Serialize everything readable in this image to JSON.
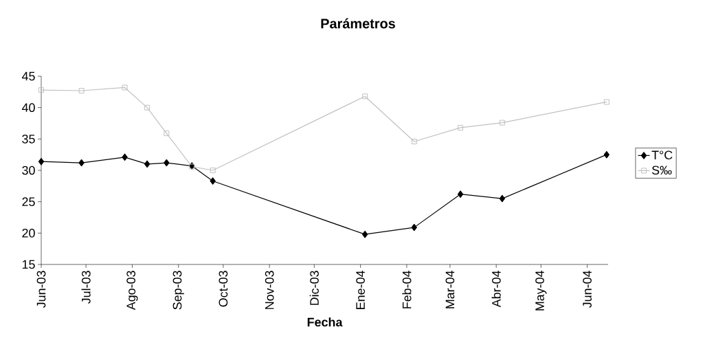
{
  "chart_data": {
    "type": "line",
    "title": "Parámetros",
    "xlabel": "Fecha",
    "x": [
      "2003-06-01",
      "2003-06-28",
      "2003-07-27",
      "2003-08-11",
      "2003-08-24",
      "2003-09-10",
      "2003-09-24",
      "2004-01-04",
      "2004-02-06",
      "2004-03-08",
      "2004-04-05",
      "2004-06-14"
    ],
    "series": [
      {
        "name": "T°C",
        "color": "#000000",
        "marker": "diamond",
        "values": [
          31.4,
          31.2,
          32.1,
          31.0,
          31.2,
          30.7,
          28.3,
          19.8,
          20.9,
          26.2,
          25.5,
          32.5
        ]
      },
      {
        "name": "S‰",
        "color": "#c0c0c0",
        "marker": "square",
        "values": [
          42.8,
          42.7,
          43.2,
          40.0,
          35.9,
          30.6,
          30.0,
          41.8,
          34.6,
          36.8,
          37.6,
          40.9
        ]
      }
    ],
    "xlim": [
      "2003-06-01",
      "2004-06-15"
    ],
    "xticks": [
      {
        "value": "2003-06-01",
        "label": "Jun-03"
      },
      {
        "value": "2003-07-01",
        "label": "Jul-03"
      },
      {
        "value": "2003-08-01",
        "label": "Ago-03"
      },
      {
        "value": "2003-09-01",
        "label": "Sep-03"
      },
      {
        "value": "2003-10-01",
        "label": "Oct-03"
      },
      {
        "value": "2003-11-01",
        "label": "Nov-03"
      },
      {
        "value": "2003-12-01",
        "label": "Dic-03"
      },
      {
        "value": "2004-01-01",
        "label": "Ene-04"
      },
      {
        "value": "2004-02-01",
        "label": "Feb-04"
      },
      {
        "value": "2004-03-01",
        "label": "Mar-04"
      },
      {
        "value": "2004-04-01",
        "label": "Abr-04"
      },
      {
        "value": "2004-05-01",
        "label": "May-04"
      },
      {
        "value": "2004-06-01",
        "label": "Jun-04"
      }
    ],
    "ylim": [
      15,
      45
    ],
    "yticks": [
      15,
      20,
      25,
      30,
      35,
      40,
      45
    ],
    "legend": "right"
  }
}
